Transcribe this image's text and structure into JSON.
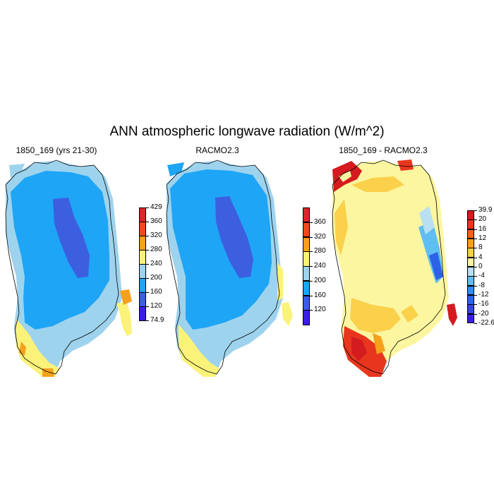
{
  "title": "ANN atmospheric longwave radiation (W/m^2)",
  "colors": {
    "c_violet": "#3a1ee6",
    "c_darkblue": "#3c5fe0",
    "c_blue": "#1ea5f5",
    "c_lightblue": "#9ed3ee",
    "c_yellow": "#fbf27a",
    "c_orange": "#f5a11c",
    "c_redorange": "#ef5a1e",
    "c_red": "#d7191c",
    "coast": "#000000"
  },
  "panels": [
    {
      "id": "model",
      "title": "1850_169 (yrs 21-30)",
      "colorbar": {
        "labels": [
          "429",
          "360",
          "320",
          "280",
          "240",
          "200",
          "160",
          "120",
          "74.9"
        ],
        "colors": [
          "#d9262a",
          "#ee4a1c",
          "#f7a01b",
          "#fbf27a",
          "#9ed3ee",
          "#1ea5f5",
          "#3c5fe0",
          "#3a1ee6"
        ]
      }
    },
    {
      "id": "obs",
      "title": "RACMO2.3",
      "colorbar": {
        "labels": [
          "360",
          "320",
          "280",
          "240",
          "200",
          "160",
          "120"
        ],
        "colors": [
          "#d9262a",
          "#ee4a1c",
          "#f7a01b",
          "#fbf27a",
          "#9ed3ee",
          "#1ea5f5",
          "#3c5fe0",
          "#3a1ee6"
        ]
      }
    },
    {
      "id": "diff",
      "title": "1850_169 - RACMO2.3",
      "colorbar": {
        "labels": [
          "39.9",
          "20",
          "16",
          "12",
          "8",
          "4",
          "0",
          "-4",
          "-8",
          "-12",
          "-16",
          "-20",
          "-22.6"
        ],
        "colors": [
          "#d41b1f",
          "#e8361e",
          "#f2641d",
          "#f7a01b",
          "#fbd04a",
          "#fdf6a0",
          "#b8e0f2",
          "#5fbef2",
          "#2a8ff0",
          "#2d62e6",
          "#3447d8",
          "#3a1ee6"
        ]
      }
    }
  ]
}
